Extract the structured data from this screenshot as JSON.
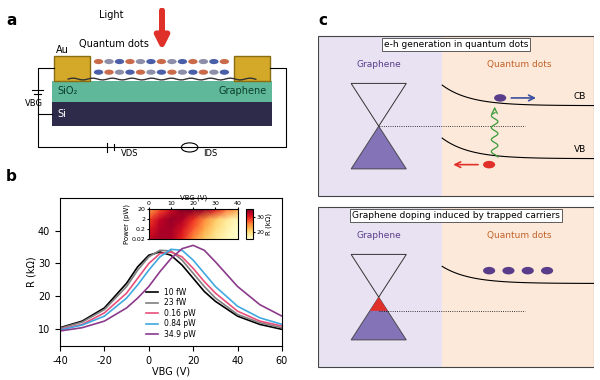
{
  "panel_labels": [
    "a",
    "b",
    "c"
  ],
  "schematic": {
    "light": "Light",
    "quantum_dots": "Quantum dots",
    "electrode": "Au",
    "oxide": "SiO₂",
    "channel": "Graphene",
    "substrate": "Si",
    "gate_voltage": "VBG",
    "drain_voltage": "VDS",
    "drain_current": "IDS"
  },
  "chart_data": [
    {
      "type": "line",
      "x_label": "VBG (V)",
      "y_label": "R (kΩ)",
      "x": [
        -40,
        -30,
        -20,
        -10,
        -5,
        0,
        5,
        10,
        15,
        20,
        25,
        30,
        40,
        50,
        60
      ],
      "xlim": [
        -40,
        60
      ],
      "xticks": [
        -40,
        -20,
        0,
        20,
        40,
        60
      ],
      "ylim": [
        5,
        50
      ],
      "yticks": [
        10,
        20,
        30,
        40
      ],
      "legend": "lower center",
      "series": [
        {
          "name": "10 fW",
          "color": "#000000",
          "values": [
            10.5,
            12.5,
            16.5,
            24,
            29,
            32.5,
            33.5,
            32.5,
            29.5,
            25.5,
            21.5,
            18.5,
            14,
            11.5,
            10
          ]
        },
        {
          "name": "23 fW",
          "color": "#7f7f7f",
          "values": [
            10.3,
            12.2,
            16,
            23,
            28,
            32,
            34,
            33.8,
            31,
            27,
            23,
            19.5,
            14.5,
            12,
            10.5
          ]
        },
        {
          "name": "0.16 pW",
          "color": "#e8507a",
          "values": [
            10,
            11.5,
            15,
            21,
            25.5,
            30,
            33,
            33.5,
            32,
            28.5,
            24.5,
            21,
            15.5,
            12.5,
            11
          ]
        },
        {
          "name": "0.84 pW",
          "color": "#3fa9e0",
          "values": [
            9.8,
            11.3,
            14,
            19.5,
            23.5,
            28,
            32,
            34.3,
            34,
            31,
            27,
            23,
            17,
            13.5,
            11.5
          ]
        },
        {
          "name": "34.9 pW",
          "color": "#8b3a8b",
          "values": [
            9.5,
            10.5,
            12.5,
            16.5,
            19.5,
            23,
            27.5,
            31.5,
            34.5,
            35.5,
            34,
            30.5,
            23,
            17.5,
            14
          ]
        }
      ]
    },
    {
      "type": "heatmap",
      "x_label": "VBG (V)",
      "y_label": "Power (pW)",
      "log": "y",
      "x": [
        0,
        5,
        10,
        15,
        20,
        25,
        30,
        35,
        40
      ],
      "y": [
        0.02,
        0.2,
        2,
        20
      ],
      "values": [
        [
          32,
          33.5,
          33,
          29.5,
          25,
          21,
          18,
          16,
          14
        ],
        [
          30,
          33,
          33.5,
          31,
          27,
          23,
          19.5,
          17,
          15
        ],
        [
          28,
          32,
          34,
          33,
          29,
          25,
          21,
          18,
          16
        ],
        [
          23,
          27.5,
          31.5,
          34.5,
          35,
          34,
          30.5,
          26,
          23
        ]
      ],
      "xlim": [
        0,
        40
      ],
      "xticks": [
        0,
        10,
        20,
        30,
        40
      ],
      "ylim": [
        0.02,
        20
      ],
      "yticks": [
        0.02,
        0.2,
        2,
        20
      ],
      "colorbar": {
        "label": "R (kΩ)",
        "range": [
          15,
          35
        ],
        "ticks": [
          20,
          30
        ]
      }
    }
  ],
  "band_diagrams": [
    {
      "title": "e-h generation in quantum dots",
      "left": "Graphene",
      "right": "Quantum dots",
      "bands": [
        "CB",
        "VB"
      ]
    },
    {
      "title": "Graphene doping induced by trapped carriers",
      "left": "Graphene",
      "right": "Quantum dots"
    }
  ]
}
